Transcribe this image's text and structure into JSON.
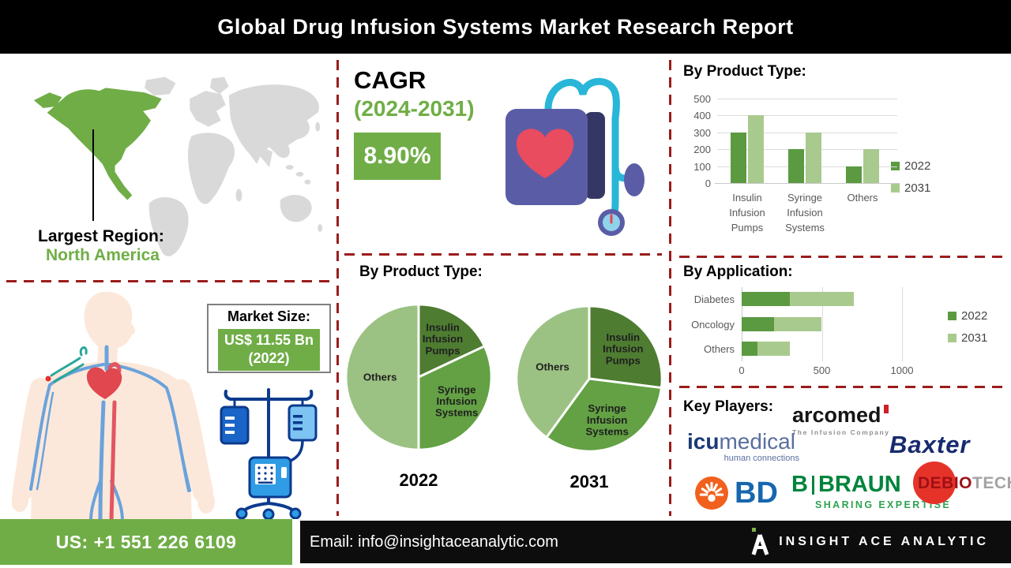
{
  "header": {
    "title": "Global Drug Infusion Systems Market Research Report"
  },
  "largest_region": {
    "label": "Largest Region:",
    "value": "North America"
  },
  "cagr": {
    "label": "CAGR",
    "period": "(2024-2031)",
    "value": "8.90%"
  },
  "market_size": {
    "label": "Market Size:",
    "value": "US$ 11.55 Bn",
    "year": "(2022)"
  },
  "key_players": {
    "title": "Key Players:",
    "arcomed": {
      "name": "arcomed",
      "tagline": "The Infusion Company"
    },
    "icumedical": {
      "name_bold": "icu",
      "name_light": "medical",
      "tagline": "human connections"
    },
    "baxter": {
      "name": "Baxter"
    },
    "bd": {
      "name": "BD"
    },
    "bbraun": {
      "name_b": "B",
      "name_braun": "BRAUN",
      "tagline": "SHARING EXPERTISE"
    },
    "debiotech": {
      "name_red": "DEBIO",
      "name_gray": "TECH"
    }
  },
  "footer": {
    "phone": "US: +1 551 226 6109",
    "email_label": "Email:",
    "email": "info@insightaceanalytic.com",
    "brand": "INSIGHT ACE ANALYTIC"
  },
  "colors": {
    "accent_green": "#70ad47",
    "pie_dark_green": "#4e7c31",
    "pie_mid_green": "#63a144",
    "pie_light_green": "#9cc283",
    "bar_2022": "#5b9a41",
    "bar_2031": "#a9ca8e",
    "dashed_red": "#9b1c1c"
  },
  "chart_data": [
    {
      "id": "product_type_grouped_bar",
      "type": "bar",
      "title": "By Product Type:",
      "categories": [
        "Insulin Infusion Pumps",
        "Syringe Infusion Systems",
        "Others"
      ],
      "series": [
        {
          "name": "2022",
          "color": "#5b9a41",
          "values": [
            300,
            200,
            100
          ]
        },
        {
          "name": "2031",
          "color": "#a9ca8e",
          "values": [
            400,
            300,
            200
          ]
        }
      ],
      "ylim": [
        0,
        500
      ],
      "yticks": [
        0,
        100,
        200,
        300,
        400,
        500
      ],
      "grid": true,
      "legend_position": "right"
    },
    {
      "id": "product_type_pies",
      "type": "pie",
      "title": "By Product Type:",
      "pies": [
        {
          "label": "2022",
          "slices": [
            {
              "name": "Insulin Infusion Pumps",
              "percent": 18,
              "color": "#4e7c31"
            },
            {
              "name": "Syringe Infusion Systems",
              "percent": 32,
              "color": "#63a144"
            },
            {
              "name": "Others",
              "percent": 50,
              "color": "#9cc283"
            }
          ]
        },
        {
          "label": "2031",
          "slices": [
            {
              "name": "Insulin Infusion Pumps",
              "percent": 27,
              "color": "#4e7c31"
            },
            {
              "name": "Syringe Infusion Systems",
              "percent": 33,
              "color": "#63a144"
            },
            {
              "name": "Others",
              "percent": 40,
              "color": "#9cc283"
            }
          ]
        }
      ]
    },
    {
      "id": "application_stacked_bar",
      "type": "bar",
      "orientation": "horizontal",
      "stacked": true,
      "title": "By Application:",
      "categories": [
        "Diabetes",
        "Oncology",
        "Others"
      ],
      "series": [
        {
          "name": "2022",
          "color": "#5b9a41",
          "values": [
            300,
            200,
            100
          ]
        },
        {
          "name": "2031",
          "color": "#a9ca8e",
          "values": [
            400,
            300,
            200
          ]
        }
      ],
      "xlim": [
        0,
        1300
      ],
      "xticks": [
        0,
        500,
        1000
      ],
      "legend_position": "right"
    }
  ]
}
